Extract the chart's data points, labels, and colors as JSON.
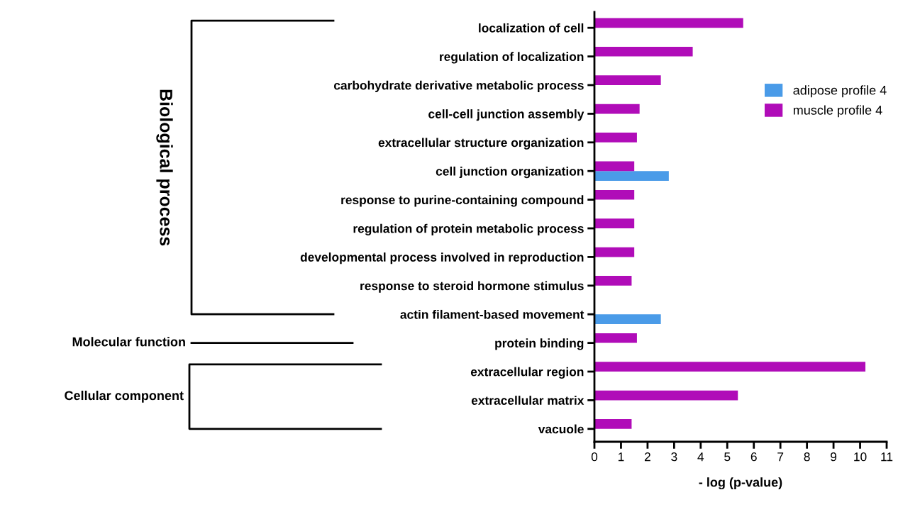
{
  "chart_data": {
    "type": "bar",
    "orientation": "horizontal",
    "xlabel": "- log (p-value)",
    "categories": [
      "localization of cell",
      "regulation of localization",
      "carbohydrate derivative metabolic process",
      "cell-cell junction assembly",
      "extracellular structure organization",
      "cell junction organization",
      "response to purine-containing compound",
      "regulation of protein metabolic process",
      "developmental process involved in reproduction",
      "response to steroid hormone stimulus",
      "actin filament-based movement",
      "protein binding",
      "extracellular region",
      "extracellular matrix",
      "vacuole"
    ],
    "series": [
      {
        "name": "adipose profile 4",
        "color": "#4a9be8",
        "values": [
          null,
          null,
          null,
          null,
          null,
          2.8,
          null,
          null,
          null,
          null,
          2.5,
          null,
          null,
          null,
          null
        ]
      },
      {
        "name": "muscle profile 4",
        "color": "#b00cb8",
        "values": [
          5.6,
          3.7,
          2.5,
          1.7,
          1.6,
          1.5,
          1.5,
          1.5,
          1.5,
          1.4,
          null,
          1.6,
          10.2,
          5.4,
          1.4
        ]
      }
    ],
    "xlim": [
      0,
      11
    ],
    "xticks": [
      0,
      1,
      2,
      3,
      4,
      5,
      6,
      7,
      8,
      9,
      10,
      11
    ],
    "grid": false,
    "legend": "top right",
    "annotations": [
      "Biological process",
      "Molecular function",
      "Cellular component"
    ]
  }
}
